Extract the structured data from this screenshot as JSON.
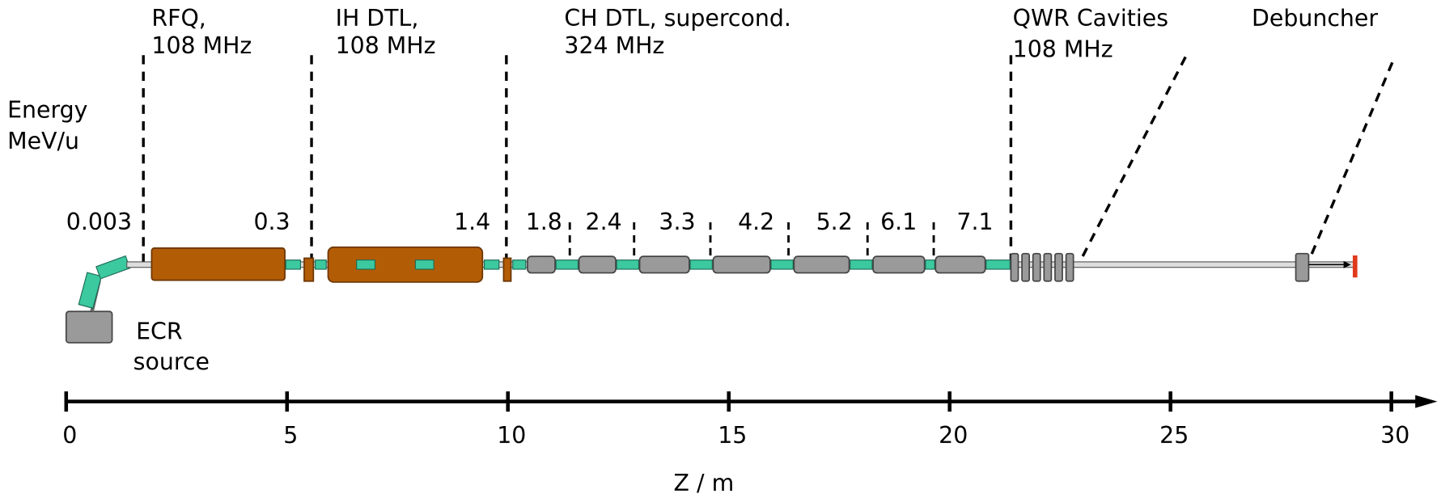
{
  "energy_label": [
    "Energy",
    "MeV/u"
  ],
  "sections": [
    {
      "name": "RFQ,",
      "freq": "108 MHz"
    },
    {
      "name": "IH DTL,",
      "freq": "108 MHz"
    },
    {
      "name": "CH DTL, supercond.",
      "freq": "324 MHz"
    },
    {
      "name": "QWR Cavities",
      "freq": "108 MHz"
    },
    {
      "name": "Debuncher"
    }
  ],
  "energies": [
    0.003,
    0.3,
    1.4,
    1.8,
    2.4,
    3.3,
    4.2,
    5.2,
    6.1,
    7.1
  ],
  "source": [
    "ECR",
    "source"
  ],
  "axis": {
    "label": "Z / m",
    "ticks": [
      0,
      5,
      10,
      15,
      20,
      25,
      30
    ]
  }
}
